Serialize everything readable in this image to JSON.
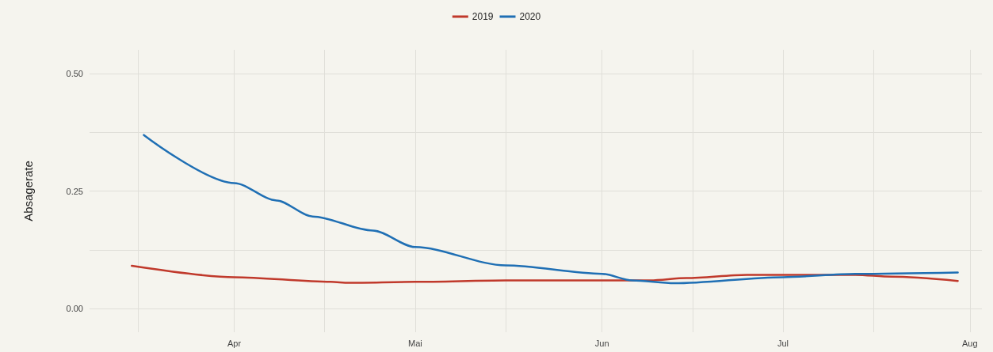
{
  "chart_data": {
    "type": "line",
    "ylabel": "Absagerate",
    "xlim": [
      "--03-08",
      "--08-03"
    ],
    "xticks": [
      {
        "value": "--03-16",
        "label": null
      },
      {
        "value": "--04-01",
        "label": "Apr"
      },
      {
        "value": "--04-16",
        "label": null
      },
      {
        "value": "--05-01",
        "label": "Mai"
      },
      {
        "value": "--05-16",
        "label": null
      },
      {
        "value": "--06-01",
        "label": "Jun"
      },
      {
        "value": "--06-16",
        "label": null
      },
      {
        "value": "--07-01",
        "label": "Jul"
      },
      {
        "value": "--07-16",
        "label": null
      },
      {
        "value": "--08-01",
        "label": "Aug"
      }
    ],
    "ylim": [
      -0.05,
      0.55
    ],
    "yticks": [
      {
        "value": 0,
        "label": "0.00"
      },
      {
        "value": 0.125,
        "label": null
      },
      {
        "value": 0.25,
        "label": "0.25"
      },
      {
        "value": 0.375,
        "label": null
      },
      {
        "value": 0.5,
        "label": "0.50"
      }
    ],
    "grid": true,
    "legend": "top",
    "marker": "none",
    "line_style": "solid",
    "series": [
      {
        "name": "2019",
        "color": "#c0392b",
        "x": [
          "--03-15",
          "--04-01",
          "--04-17",
          "--04-20",
          "--05-01",
          "--05-16",
          "--06-01",
          "--06-09",
          "--06-15",
          "--06-25",
          "--07-13",
          "--07-19",
          "--07-30"
        ],
        "values": [
          0.091,
          0.067,
          0.057,
          0.055,
          0.057,
          0.06,
          0.06,
          0.06,
          0.065,
          0.072,
          0.072,
          0.068,
          0.059
        ]
      },
      {
        "name": "2020",
        "color": "#1f6fb4",
        "x": [
          "--03-17",
          "--04-01",
          "--04-08",
          "--04-14",
          "--04-24",
          "--05-01",
          "--05-16",
          "--06-01",
          "--06-06",
          "--06-13",
          "--07-01",
          "--07-13",
          "--07-30"
        ],
        "values": [
          0.369,
          0.267,
          0.23,
          0.196,
          0.166,
          0.131,
          0.092,
          0.074,
          0.06,
          0.054,
          0.067,
          0.074,
          0.077
        ]
      }
    ]
  }
}
